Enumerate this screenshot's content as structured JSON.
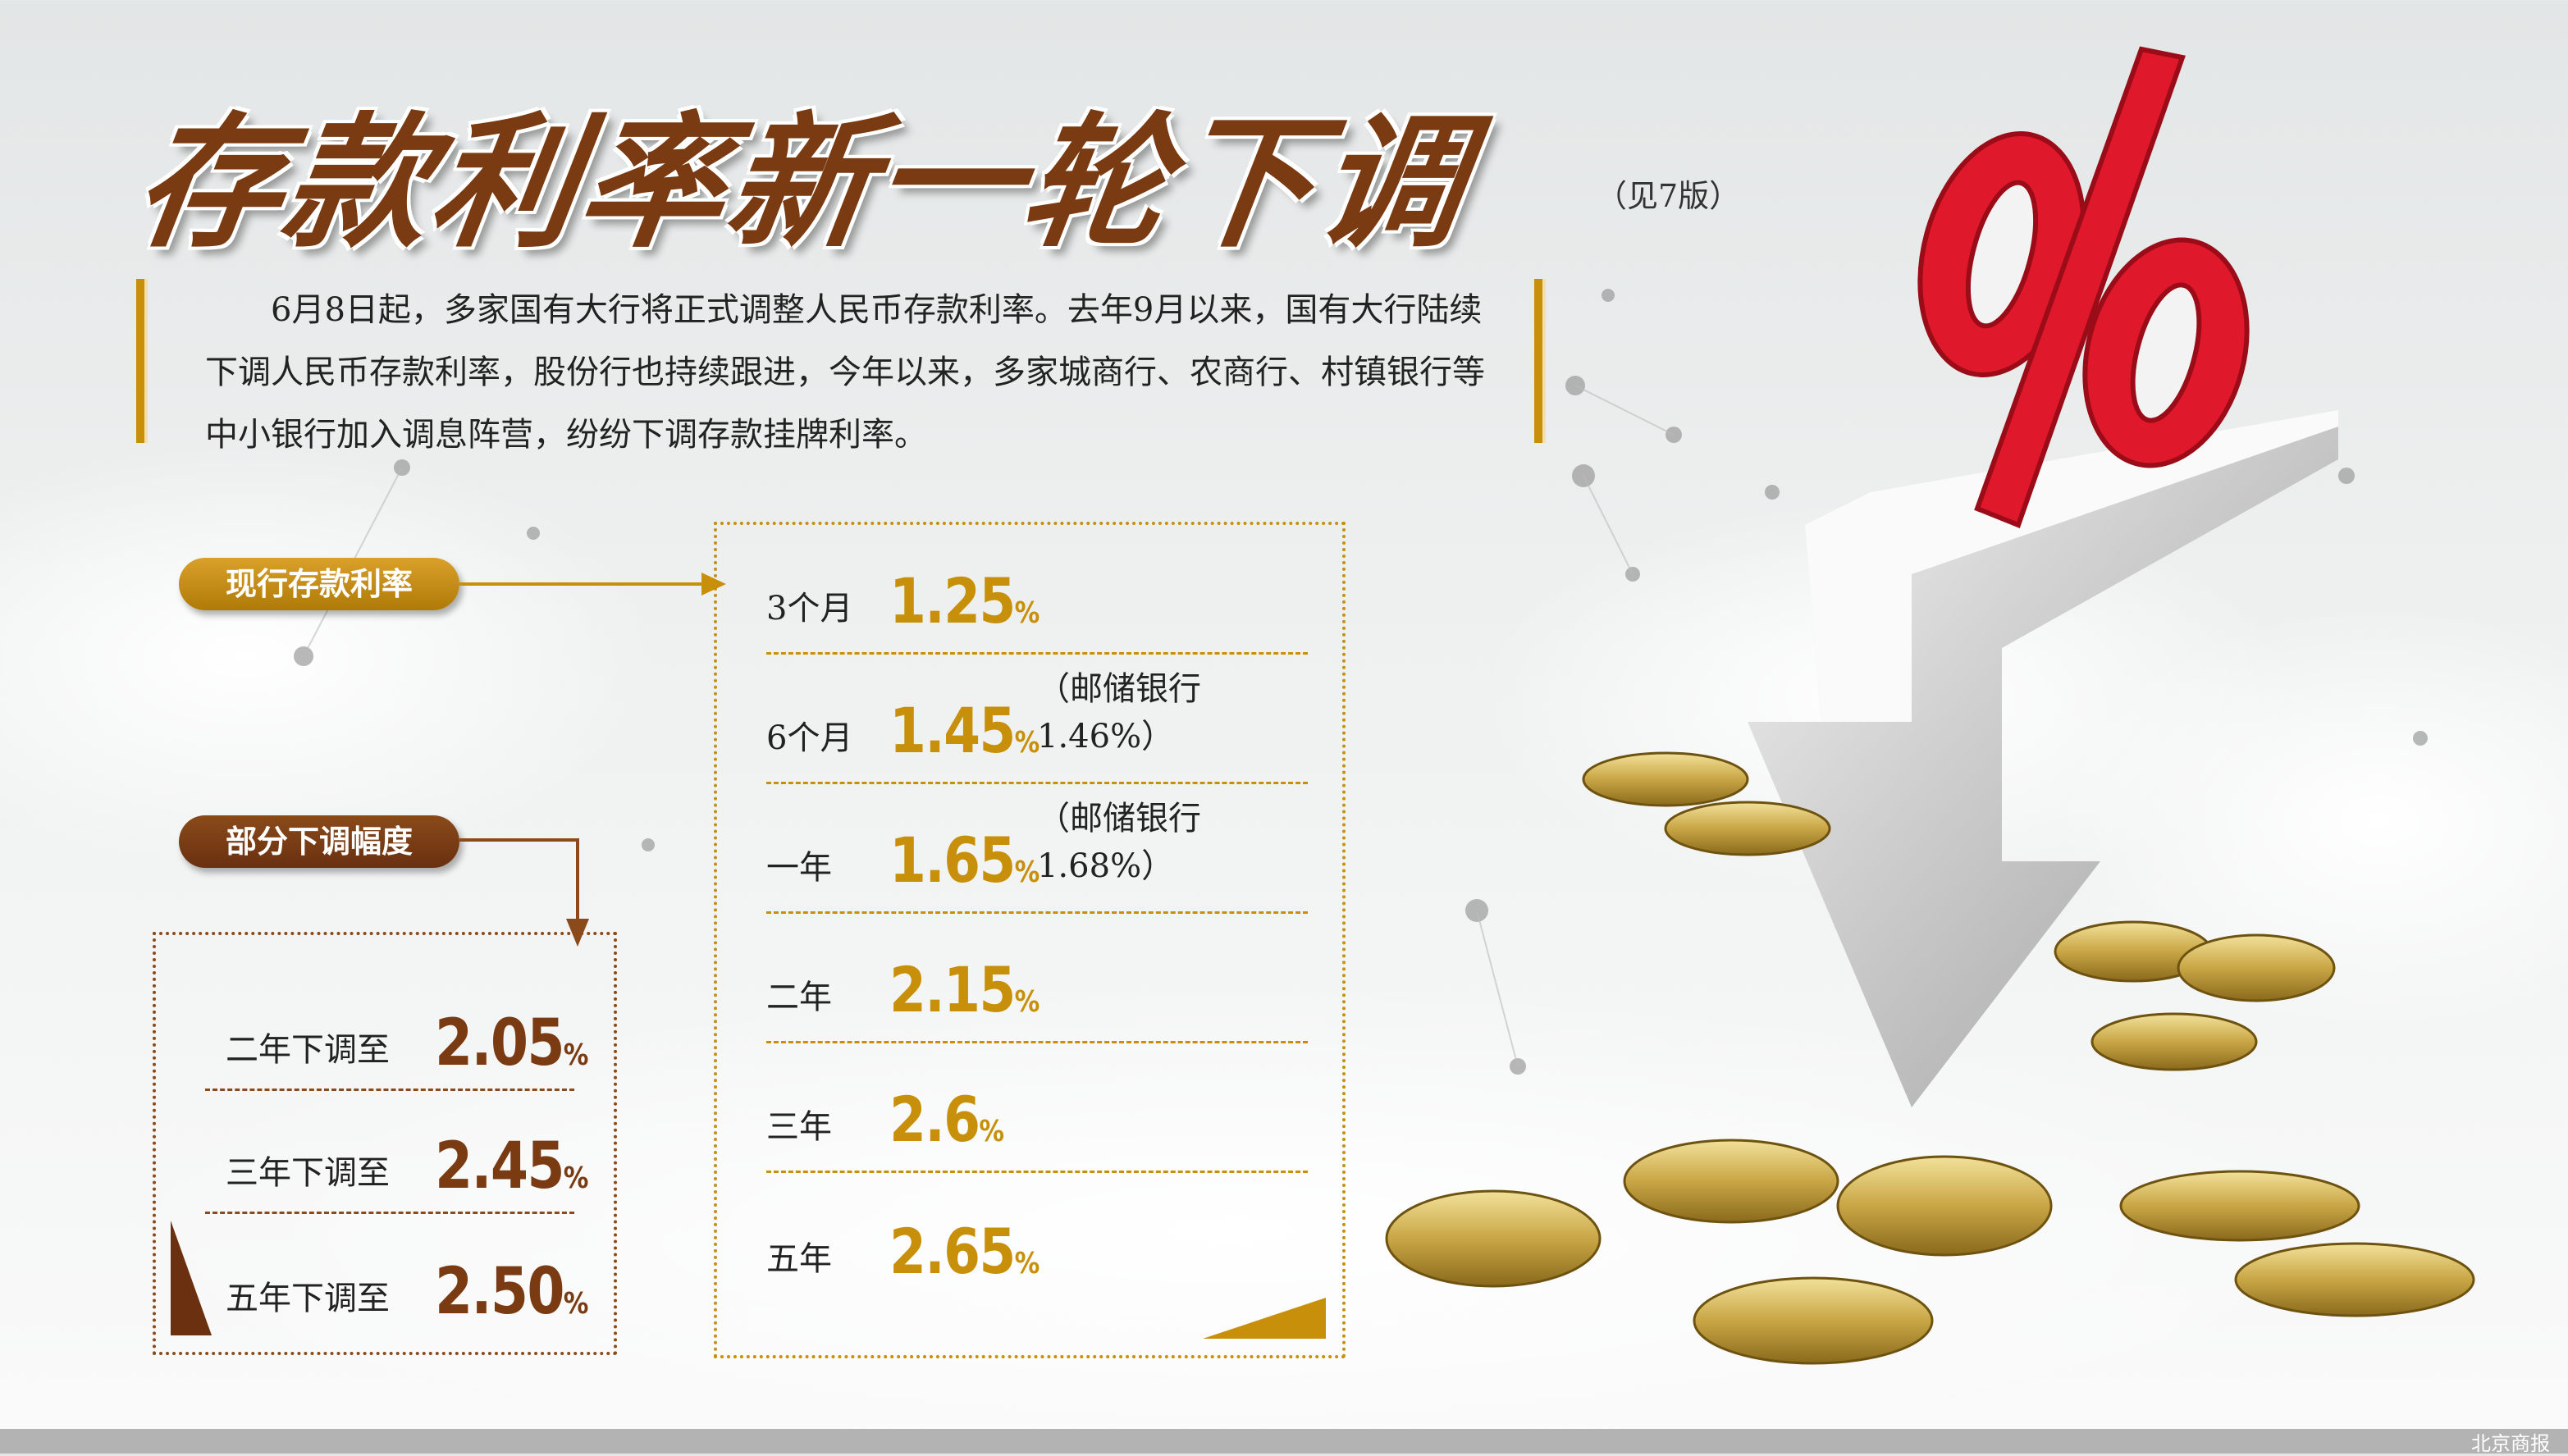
{
  "header": {
    "title": "存款利率新一轮下调",
    "see_page": "（见7版）"
  },
  "intro": "6月8日起，多家国有大行将正式调整人民币存款利率。去年9月以来，国有大行陆续下调人民币存款利率，股份行也持续跟进，今年以来，多家城商行、农商行、村镇银行等中小银行加入调息阵营，纷纷下调存款挂牌利率。",
  "current": {
    "label": "现行存款利率",
    "rows": [
      {
        "term": "3个月",
        "rate": "1.25",
        "unit": "%",
        "note": ""
      },
      {
        "term": "6个月",
        "rate": "1.45",
        "unit": "%",
        "note": "（邮储银行1.46%）"
      },
      {
        "term": "一年",
        "rate": "1.65",
        "unit": "%",
        "note": "（邮储银行1.68%）"
      },
      {
        "term": "二年",
        "rate": "2.15",
        "unit": "%",
        "note": ""
      },
      {
        "term": "三年",
        "rate": "2.6",
        "unit": "%",
        "note": ""
      },
      {
        "term": "五年",
        "rate": "2.65",
        "unit": "%",
        "note": ""
      }
    ]
  },
  "cuts": {
    "label": "部分下调幅度",
    "rows": [
      {
        "text": "二年下调至",
        "rate": "2.05",
        "unit": "%"
      },
      {
        "text": "三年下调至",
        "rate": "2.45",
        "unit": "%"
      },
      {
        "text": "五年下调至",
        "rate": "2.50",
        "unit": "%"
      }
    ]
  },
  "footer": {
    "source": "北京商报"
  },
  "colors": {
    "brown": "#7a3a12",
    "gold": "#c8900a",
    "percent_red": "#e0182c"
  }
}
